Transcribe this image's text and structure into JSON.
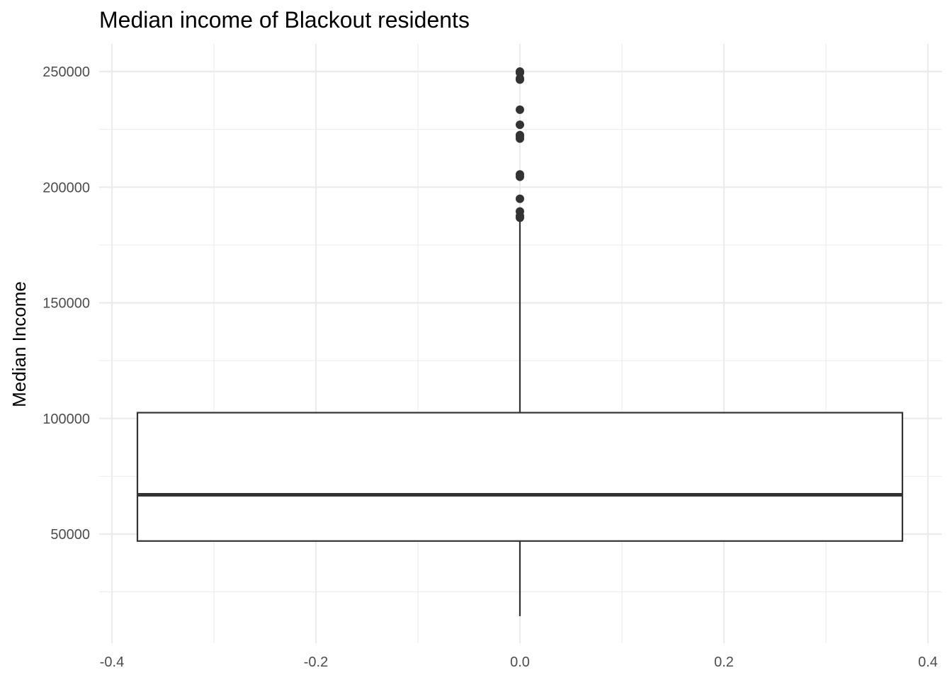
{
  "chart_data": {
    "type": "boxplot",
    "title": "Median income of Blackout residents",
    "xlabel": "",
    "ylabel": "Median Income",
    "xlim": [
      -0.4,
      0.4
    ],
    "ylim": [
      0,
      260000
    ],
    "x_ticks": [
      -0.4,
      -0.2,
      0.0,
      0.2,
      0.4
    ],
    "x_tick_labels": [
      "-0.4",
      "-0.2",
      "0.0",
      "0.2",
      "0.4"
    ],
    "y_ticks": [
      50000,
      100000,
      150000,
      200000,
      250000
    ],
    "y_tick_labels": [
      "50000",
      "100000",
      "150000",
      "200000",
      "250000"
    ],
    "grid": true,
    "box": {
      "x": 0.0,
      "x_left": -0.375,
      "x_right": 0.375,
      "whisker_low": 14500,
      "q1": 47000,
      "median": 67000,
      "q3": 102500,
      "whisker_high": 186500,
      "outliers": [
        250000,
        249500,
        247000,
        246500,
        233500,
        227000,
        222500,
        222000,
        221000,
        205500,
        204500,
        195000,
        189500,
        187500,
        186800
      ]
    },
    "colors": {
      "box_line": "#333333",
      "box_fill": "#ffffff",
      "grid": "#ebebeb",
      "tick_text": "#4d4d4d"
    }
  }
}
